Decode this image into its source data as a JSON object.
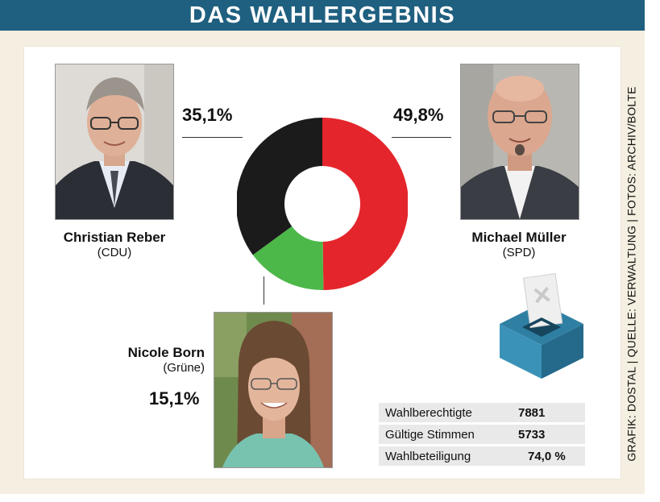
{
  "header": {
    "title": "DAS WAHLERGEBNIS"
  },
  "candidates": [
    {
      "name": "Christian Reber",
      "party": "(CDU)",
      "percent_label": "35,1%"
    },
    {
      "name": "Michael Müller",
      "party": "(SPD)",
      "percent_label": "49,8%"
    },
    {
      "name": "Nicole Born",
      "party": "(Grüne)",
      "percent_label": "15,1%"
    }
  ],
  "stats": [
    {
      "label": "Wahlberechtigte",
      "value": "7881"
    },
    {
      "label": "Gültige Stimmen",
      "value": "5733"
    },
    {
      "label": "Wahlbeteiligung",
      "value": "74,0 %"
    }
  ],
  "credit": "GRAFIK: DOSTAL | QUELLE: VERWALTUNG | FOTOS: ARCHIV/BOLTE",
  "icons": {
    "ballot": "ballot-box-icon"
  },
  "chart_data": {
    "type": "pie",
    "style": "donut",
    "categories": [
      "Michael Müller",
      "Nicole Born",
      "Christian Reber"
    ],
    "values": [
      49.8,
      15.1,
      35.1
    ],
    "unit": "%",
    "colors": [
      "#e4262c",
      "#4cb849",
      "#1b1b1b"
    ],
    "start": "top, clockwise"
  }
}
